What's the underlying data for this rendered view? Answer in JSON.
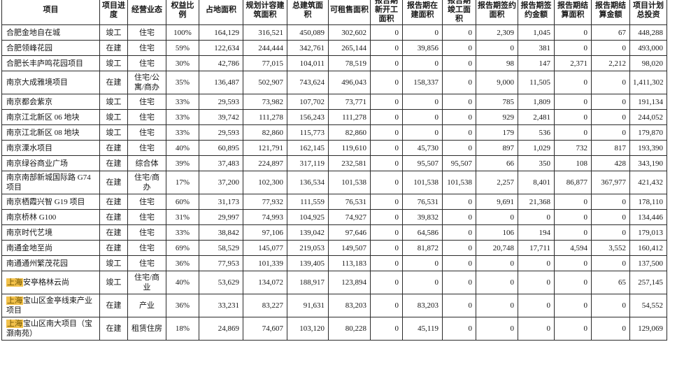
{
  "table": {
    "headers": [
      "项目",
      "项目进度",
      "经营业态",
      "权益比例",
      "占地面积",
      "规划计容建筑面积",
      "总建筑面积",
      "可租售面积",
      "报告期新开工面积",
      "报告期在建面积",
      "报告期竣工面积",
      "报告期签约面积",
      "报告期签约金额",
      "报告期结算面积",
      "报告期结算金额",
      "项目计划总投资"
    ],
    "highlight_term": "上海",
    "highlight_color": "#F2C14B",
    "rows": [
      {
        "name_hl": "",
        "cells": [
          "合肥金地自在城",
          "竣工",
          "住宅",
          "100%",
          "164,129",
          "316,521",
          "450,089",
          "302,602",
          "0",
          "0",
          "0",
          "2,309",
          "1,045",
          "0",
          "67",
          "448,288"
        ]
      },
      {
        "name_hl": "",
        "cells": [
          "合肥领峰花园",
          "在建",
          "住宅",
          "59%",
          "122,634",
          "244,444",
          "342,761",
          "265,144",
          "0",
          "39,856",
          "0",
          "0",
          "381",
          "0",
          "0",
          "493,000"
        ]
      },
      {
        "name_hl": "",
        "cells": [
          "合肥长丰庐鸣花园项目",
          "竣工",
          "住宅",
          "30%",
          "42,786",
          "77,015",
          "104,011",
          "78,519",
          "0",
          "0",
          "0",
          "98",
          "147",
          "2,371",
          "2,212",
          "98,020"
        ]
      },
      {
        "name_hl": "",
        "cells": [
          "南京大成雅境项目",
          "在建",
          "住宅/公寓/商办",
          "35%",
          "136,487",
          "502,907",
          "743,624",
          "496,043",
          "0",
          "158,337",
          "0",
          "9,000",
          "11,505",
          "0",
          "0",
          "1,411,302"
        ]
      },
      {
        "name_hl": "",
        "cells": [
          "南京都会紫京",
          "竣工",
          "住宅",
          "33%",
          "29,593",
          "73,982",
          "107,702",
          "73,771",
          "0",
          "0",
          "0",
          "785",
          "1,809",
          "0",
          "0",
          "191,134"
        ]
      },
      {
        "name_hl": "",
        "cells": [
          "南京江北新区 06 地块",
          "竣工",
          "住宅",
          "33%",
          "39,742",
          "111,278",
          "156,243",
          "111,278",
          "0",
          "0",
          "0",
          "929",
          "2,481",
          "0",
          "0",
          "244,052"
        ]
      },
      {
        "name_hl": "",
        "cells": [
          "南京江北新区 08 地块",
          "竣工",
          "住宅",
          "33%",
          "29,593",
          "82,860",
          "115,773",
          "82,860",
          "0",
          "0",
          "0",
          "179",
          "536",
          "0",
          "0",
          "179,870"
        ]
      },
      {
        "name_hl": "",
        "cells": [
          "南京溧水项目",
          "在建",
          "住宅",
          "40%",
          "60,895",
          "121,791",
          "162,145",
          "119,610",
          "0",
          "45,730",
          "0",
          "897",
          "1,029",
          "732",
          "817",
          "193,390"
        ]
      },
      {
        "name_hl": "",
        "cells": [
          "南京绿谷商业广场",
          "在建",
          "综合体",
          "39%",
          "37,483",
          "224,897",
          "317,119",
          "232,581",
          "0",
          "95,507",
          "95,507",
          "66",
          "350",
          "108",
          "428",
          "343,190"
        ]
      },
      {
        "name_hl": "",
        "cells": [
          "南京南部新城国际路 G74 项目",
          "在建",
          "住宅/商办",
          "17%",
          "37,200",
          "102,300",
          "136,534",
          "101,538",
          "0",
          "101,538",
          "101,538",
          "2,257",
          "8,401",
          "86,877",
          "367,977",
          "421,432"
        ]
      },
      {
        "name_hl": "",
        "cells": [
          "南京栖霞兴智 G19 项目",
          "在建",
          "住宅",
          "60%",
          "31,173",
          "77,932",
          "111,559",
          "76,531",
          "0",
          "76,531",
          "0",
          "9,691",
          "21,368",
          "0",
          "0",
          "178,110"
        ]
      },
      {
        "name_hl": "",
        "cells": [
          "南京桥林 G100",
          "在建",
          "住宅",
          "31%",
          "29,997",
          "74,993",
          "104,925",
          "74,927",
          "0",
          "39,832",
          "0",
          "0",
          "0",
          "0",
          "0",
          "134,446"
        ]
      },
      {
        "name_hl": "",
        "cells": [
          "南京时代艺境",
          "在建",
          "住宅",
          "33%",
          "38,842",
          "97,106",
          "139,042",
          "97,646",
          "0",
          "64,586",
          "0",
          "106",
          "194",
          "0",
          "0",
          "179,013"
        ]
      },
      {
        "name_hl": "",
        "cells": [
          "南通金地至尚",
          "在建",
          "住宅",
          "69%",
          "58,529",
          "145,077",
          "219,053",
          "149,507",
          "0",
          "81,872",
          "0",
          "20,748",
          "17,711",
          "4,594",
          "3,552",
          "160,412"
        ]
      },
      {
        "name_hl": "",
        "cells": [
          "南通通州繁茂花园",
          "竣工",
          "住宅",
          "36%",
          "77,953",
          "101,339",
          "139,405",
          "113,183",
          "0",
          "0",
          "0",
          "0",
          "0",
          "0",
          "0",
          "137,500"
        ]
      },
      {
        "name_hl": "上海",
        "cells": [
          "安亭格林云尚",
          "竣工",
          "住宅/商业",
          "40%",
          "53,629",
          "134,072",
          "188,917",
          "123,894",
          "0",
          "0",
          "0",
          "0",
          "0",
          "0",
          "65",
          "257,145"
        ]
      },
      {
        "name_hl": "上海",
        "cells": [
          "宝山区金亭线束产业项目",
          "在建",
          "产业",
          "36%",
          "33,231",
          "83,227",
          "91,631",
          "83,203",
          "0",
          "83,203",
          "0",
          "0",
          "0",
          "0",
          "0",
          "54,552"
        ]
      },
      {
        "name_hl": "上海",
        "cells": [
          "宝山区南大项目（宝灏南苑）",
          "在建",
          "租赁住房",
          "18%",
          "24,869",
          "74,607",
          "103,120",
          "80,228",
          "0",
          "45,119",
          "0",
          "0",
          "0",
          "0",
          "0",
          "129,069"
        ]
      }
    ]
  }
}
